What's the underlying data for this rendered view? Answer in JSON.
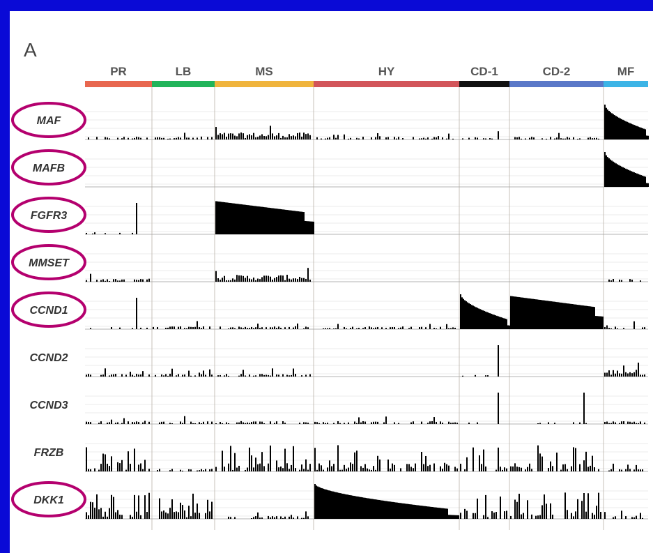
{
  "panel": {
    "letter": "A"
  },
  "chart_data": {
    "type": "bar",
    "title": "",
    "groups": [
      {
        "name": "PR",
        "color": "#e8674f"
      },
      {
        "name": "LB",
        "color": "#21b45a"
      },
      {
        "name": "MS",
        "color": "#f0b43c"
      },
      {
        "name": "HY",
        "color": "#d2555a"
      },
      {
        "name": "CD-1",
        "color": "#111111"
      },
      {
        "name": "CD-2",
        "color": "#5a78c8"
      },
      {
        "name": "MF",
        "color": "#3cb4e6"
      }
    ],
    "genes": [
      {
        "name": "MAF",
        "circled": true,
        "pattern": [
          "noise",
          "noise",
          "dense",
          "noise",
          "noise",
          "noise",
          "decay"
        ]
      },
      {
        "name": "MAFB",
        "circled": true,
        "pattern": [
          "none",
          "none",
          "none",
          "none",
          "none",
          "none",
          "decay"
        ]
      },
      {
        "name": "FGFR3",
        "circled": true,
        "pattern": [
          "spike",
          "none",
          "plateau",
          "none",
          "none",
          "none",
          "none"
        ]
      },
      {
        "name": "MMSET",
        "circled": true,
        "pattern": [
          "noise",
          "none",
          "dense",
          "none",
          "none",
          "none",
          "noise"
        ]
      },
      {
        "name": "CCND1",
        "circled": true,
        "pattern": [
          "spike",
          "noise",
          "noise",
          "noise",
          "decay",
          "plateau",
          "noise"
        ]
      },
      {
        "name": "CCND2",
        "circled": false,
        "pattern": [
          "noise",
          "noise",
          "noise",
          "none",
          "spike",
          "none",
          "dense"
        ]
      },
      {
        "name": "CCND3",
        "circled": false,
        "pattern": [
          "noise",
          "noise",
          "noise",
          "noise",
          "spike",
          "spike",
          "noise"
        ]
      },
      {
        "name": "FRZB",
        "circled": false,
        "pattern": [
          "spiky",
          "noise",
          "spiky",
          "spiky",
          "spiky",
          "spiky",
          "noise"
        ]
      },
      {
        "name": "DKK1",
        "circled": true,
        "pattern": [
          "spiky",
          "spiky",
          "noise",
          "decay",
          "spiky",
          "spiky",
          "noise"
        ]
      }
    ],
    "legend": "none",
    "grid": true,
    "highlight_color": "#b4006e"
  }
}
